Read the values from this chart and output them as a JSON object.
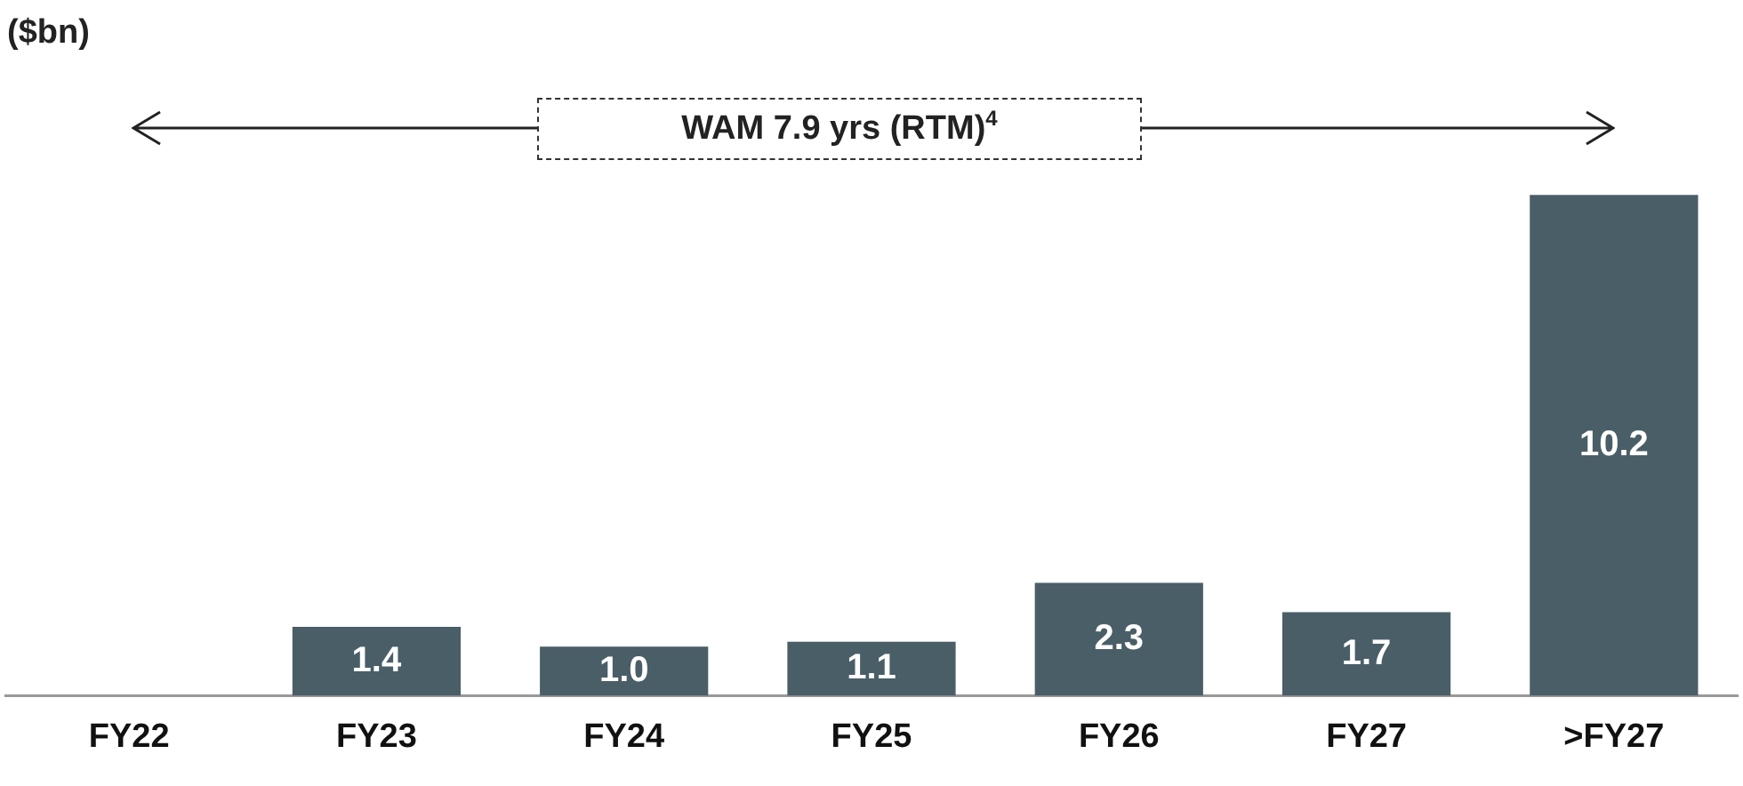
{
  "chart_data": {
    "type": "bar",
    "categories": [
      "FY22",
      "FY23",
      "FY24",
      "FY25",
      "FY26",
      "FY27",
      ">FY27"
    ],
    "values": [
      null,
      1.4,
      1.0,
      1.1,
      2.3,
      1.7,
      10.2
    ],
    "color": "#4a5e68",
    "tick_labels": "x",
    "grid": false,
    "legend": false,
    "value_labels": [
      null,
      "1.4",
      "1.0",
      "1.1",
      "2.3",
      "1.7",
      "10.2"
    ],
    "annotations": [
      "($bn)",
      "WAM 7.9 yrs (RTM)$^{4}$"
    ]
  }
}
